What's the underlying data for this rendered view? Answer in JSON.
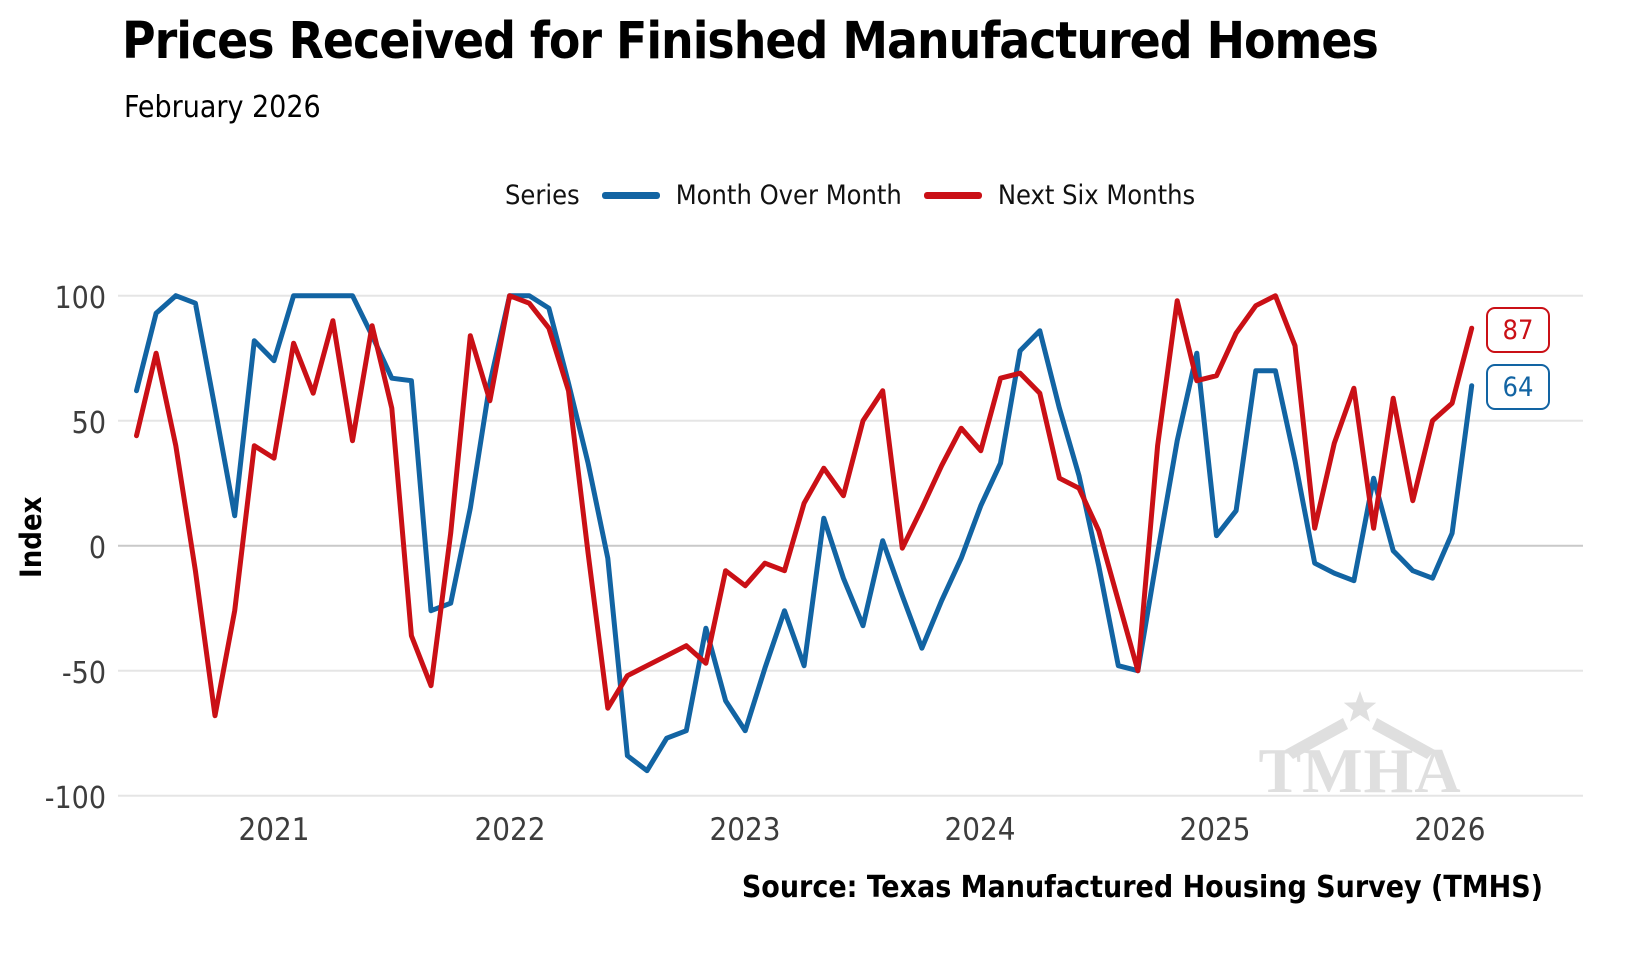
{
  "title": "Prices Received for Finished Manufactured Homes",
  "subtitle": "February 2026",
  "legend": {
    "label": "Series",
    "series": [
      {
        "name": "Month Over Month",
        "color": "#1264a3"
      },
      {
        "name": "Next Six Months",
        "color": "#ca1016"
      }
    ]
  },
  "y_axis": {
    "label": "Index",
    "ticks": [
      100,
      50,
      0,
      -50,
      -100
    ]
  },
  "x_axis": {
    "ticks": [
      "2021",
      "2022",
      "2023",
      "2024",
      "2025",
      "2026"
    ]
  },
  "end_labels": [
    {
      "series": "Next Six Months",
      "value": 87,
      "color": "#ca1016"
    },
    {
      "series": "Month Over Month",
      "value": 64,
      "color": "#1264a3"
    }
  ],
  "watermark": {
    "text": "TMHA"
  },
  "source": {
    "text": "Source: Texas Manufactured Housing Survey (TMHS)"
  },
  "chart_data": {
    "type": "line",
    "title": "Prices Received for Finished Manufactured Homes",
    "subtitle": "February 2026",
    "xlabel": "",
    "ylabel": "Index",
    "ylim": [
      -100,
      100
    ],
    "grid": "horizontal",
    "legend_position": "top",
    "x": [
      "2020-06",
      "2020-07",
      "2020-08",
      "2020-09",
      "2020-10",
      "2020-11",
      "2020-12",
      "2021-01",
      "2021-02",
      "2021-03",
      "2021-04",
      "2021-05",
      "2021-06",
      "2021-07",
      "2021-08",
      "2021-09",
      "2021-10",
      "2021-11",
      "2021-12",
      "2022-01",
      "2022-02",
      "2022-03",
      "2022-04",
      "2022-05",
      "2022-06",
      "2022-07",
      "2022-08",
      "2022-09",
      "2022-10",
      "2022-11",
      "2022-12",
      "2023-01",
      "2023-02",
      "2023-03",
      "2023-04",
      "2023-05",
      "2023-06",
      "2023-07",
      "2023-08",
      "2023-09",
      "2023-10",
      "2023-11",
      "2023-12",
      "2024-01",
      "2024-02",
      "2024-03",
      "2024-04",
      "2024-05",
      "2024-06",
      "2024-07",
      "2024-08",
      "2024-09",
      "2024-10",
      "2024-11",
      "2024-12",
      "2025-01",
      "2025-02",
      "2025-03",
      "2025-04",
      "2025-05",
      "2025-06",
      "2025-07",
      "2025-08",
      "2025-09",
      "2025-10",
      "2025-11",
      "2025-12",
      "2026-01",
      "2026-02"
    ],
    "series": [
      {
        "name": "Month Over Month",
        "color": "#1264a3",
        "values": [
          62,
          93,
          100,
          97,
          55,
          12,
          82,
          74,
          100,
          100,
          100,
          100,
          84,
          67,
          66,
          -26,
          -23,
          15,
          65,
          100,
          100,
          95,
          65,
          33,
          -5,
          -84,
          -90,
          -77,
          -74,
          -33,
          -62,
          -74,
          -49,
          -26,
          -48,
          11,
          -13,
          -32,
          2,
          -20,
          -41,
          -22,
          -5,
          16,
          33,
          78,
          86,
          55,
          28,
          -8,
          -48,
          -50,
          -3,
          42,
          77,
          4,
          14,
          70,
          70,
          34,
          -7,
          -11,
          -14,
          27,
          -2,
          -10,
          -13,
          5,
          64
        ]
      },
      {
        "name": "Next Six Months",
        "color": "#ca1016",
        "values": [
          44,
          77,
          40,
          -10,
          -68,
          -26,
          40,
          35,
          81,
          61,
          90,
          42,
          88,
          55,
          -36,
          -56,
          5,
          84,
          58,
          100,
          97,
          87,
          62,
          -3,
          -65,
          -52,
          -48,
          -44,
          -40,
          -47,
          -10,
          -16,
          -7,
          -10,
          17,
          31,
          20,
          50,
          62,
          -1,
          15,
          32,
          47,
          38,
          67,
          69,
          61,
          27,
          23,
          6,
          -22,
          -50,
          40,
          98,
          66,
          68,
          85,
          96,
          100,
          80,
          7,
          41,
          63,
          7,
          59,
          18,
          50,
          57,
          87
        ]
      }
    ]
  }
}
